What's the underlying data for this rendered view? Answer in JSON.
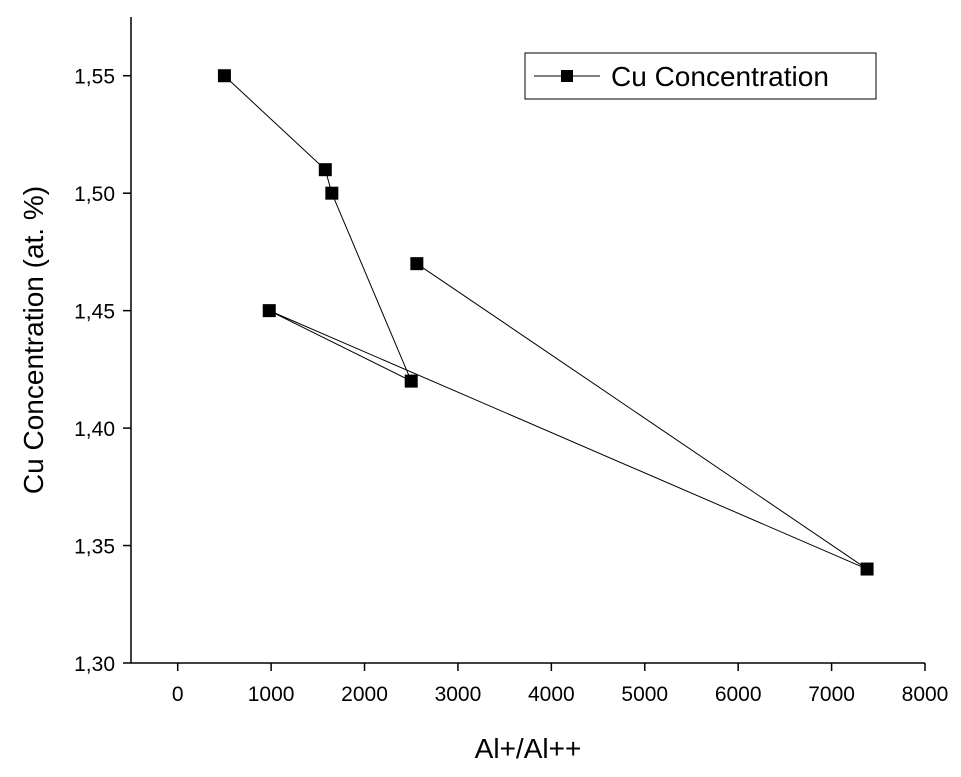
{
  "chart_data": {
    "type": "line",
    "title": "",
    "xlabel": "Al+/Al++",
    "ylabel": "Cu Concentration (at. %)",
    "xlim": [
      -500,
      8000
    ],
    "ylim": [
      1.3,
      1.575
    ],
    "xticks": [
      0,
      1000,
      2000,
      3000,
      4000,
      5000,
      6000,
      7000,
      8000
    ],
    "xtick_labels": [
      "0",
      "1000",
      "2000",
      "3000",
      "4000",
      "5000",
      "6000",
      "7000",
      "8000"
    ],
    "yticks": [
      1.3,
      1.35,
      1.4,
      1.45,
      1.5,
      1.55
    ],
    "ytick_labels": [
      "1,30",
      "1,35",
      "1,40",
      "1,45",
      "1,50",
      "1,55"
    ],
    "grid": false,
    "legend": {
      "placement": "top-right"
    },
    "marker": "square",
    "color": "#000000",
    "series": [
      {
        "name": "Cu Concentration",
        "x": [
          500,
          1580,
          1650,
          2500,
          980,
          7380,
          2560
        ],
        "y": [
          1.55,
          1.51,
          1.5,
          1.42,
          1.45,
          1.34,
          1.47
        ]
      }
    ]
  }
}
